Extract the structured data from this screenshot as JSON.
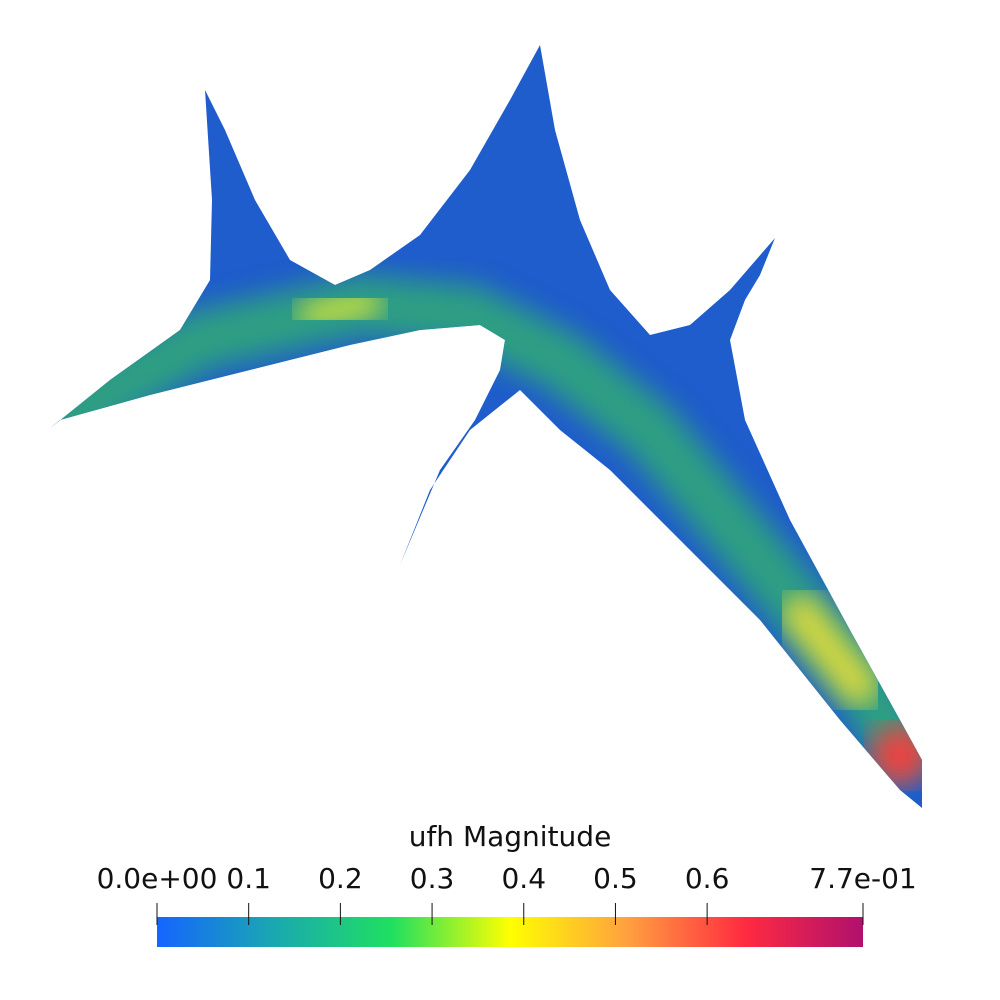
{
  "colorbar": {
    "title": "ufh Magnitude",
    "range": [
      0,
      0.77
    ],
    "ticks": [
      {
        "value": 0,
        "label": "0.0e+00"
      },
      0.1,
      0.2,
      0.3,
      0.4,
      0.5,
      0.6,
      {
        "value": 0.77,
        "label": "7.7e-01"
      }
    ],
    "colormap": [
      "#1565ff",
      "#1aa8b0",
      "#1fe060",
      "#ffff00",
      "#ffa040",
      "#ff2a40",
      "#b0106e"
    ]
  }
}
